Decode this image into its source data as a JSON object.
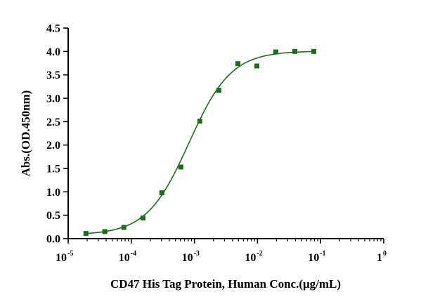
{
  "chart_data": {
    "type": "scatter",
    "xlabel": "CD47 His Tag Protein, Human Conc.(μg/mL)",
    "ylabel": "Abs.(OD.450nm)",
    "x_scale": "log",
    "xlim": [
      1e-05,
      1
    ],
    "ylim": [
      0,
      4.5
    ],
    "x_ticks": [
      {
        "value": 1e-05,
        "base": "10",
        "exp": "-5"
      },
      {
        "value": 0.0001,
        "base": "10",
        "exp": "-4"
      },
      {
        "value": 0.001,
        "base": "10",
        "exp": "-3"
      },
      {
        "value": 0.01,
        "base": "10",
        "exp": "-2"
      },
      {
        "value": 0.1,
        "base": "10",
        "exp": "-1"
      },
      {
        "value": 1,
        "base": "1",
        "exp": "0"
      }
    ],
    "y_ticks": [
      "0.0",
      "0.5",
      "1.0",
      "1.5",
      "2.0",
      "2.5",
      "3.0",
      "3.5",
      "4.0",
      "4.5"
    ],
    "grid": false,
    "color": "#1e6b1e",
    "series": [
      {
        "x": [
          1.91e-05,
          3.81e-05,
          7.63e-05,
          0.000153,
          0.000305,
          0.00061,
          0.00122,
          0.00244,
          0.00488,
          0.00977,
          0.0195,
          0.0391,
          0.0781
        ],
        "y": [
          0.11,
          0.15,
          0.24,
          0.44,
          0.98,
          1.53,
          2.51,
          3.17,
          3.74,
          3.69,
          3.99,
          4.0,
          4.0
        ]
      }
    ],
    "fit": {
      "bottom": 0.08,
      "top": 4.01,
      "ec50": 0.00082,
      "hill": 1.3,
      "x_range": [
        1.91e-05,
        0.0781
      ]
    }
  }
}
